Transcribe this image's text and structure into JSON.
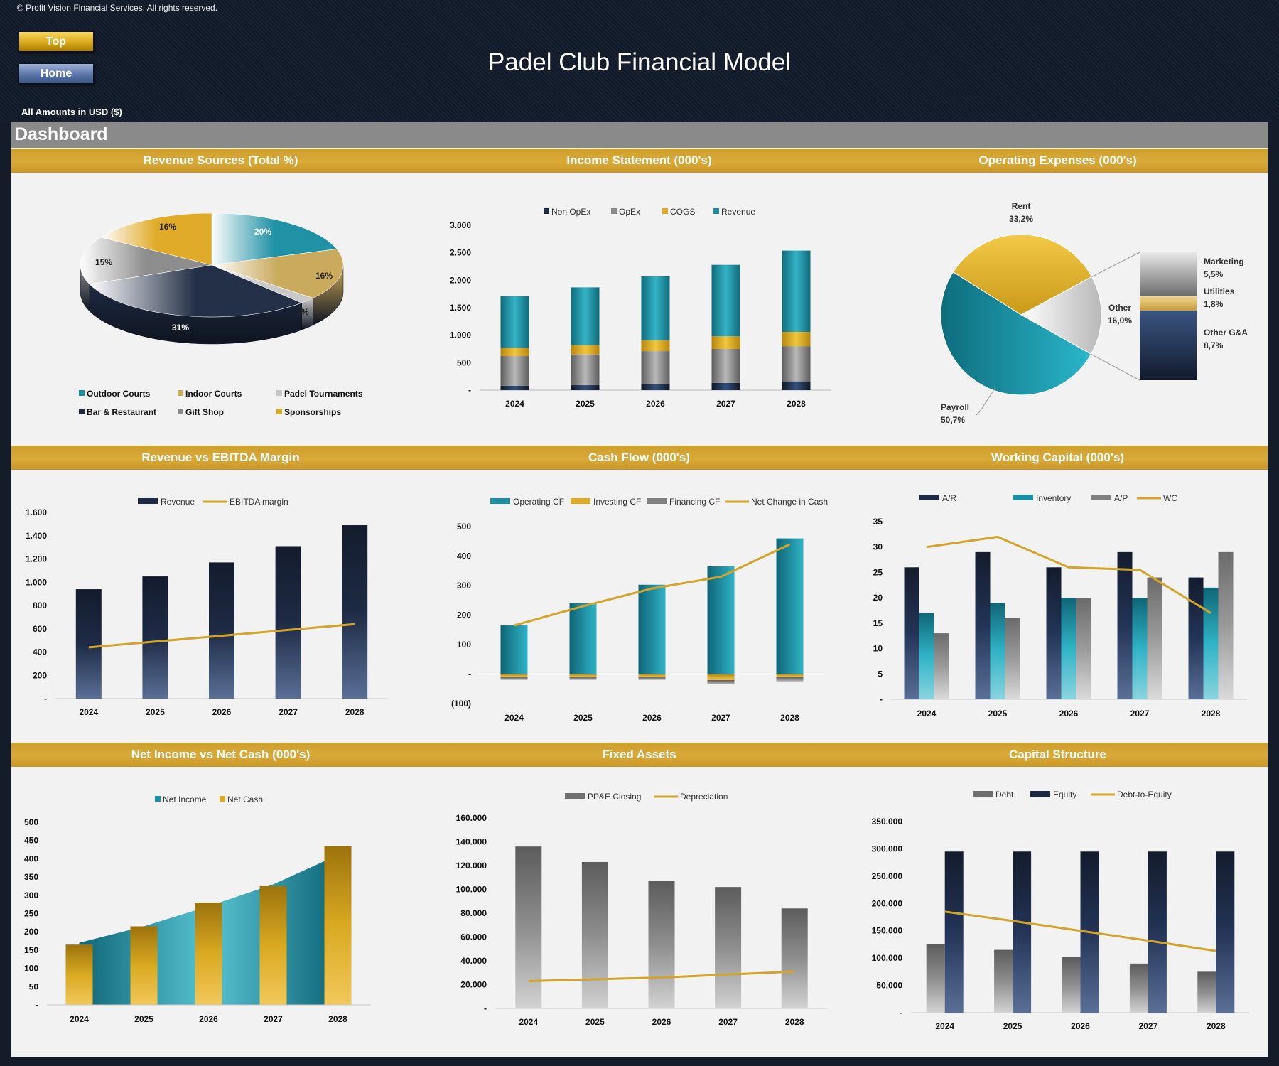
{
  "header": {
    "copyright": "© Profit Vision Financial Services. All rights reserved.",
    "top_button": "Top",
    "home_button": "Home",
    "title": "Padel Club Financial Model",
    "amounts_label": "All Amounts in  USD ($)",
    "dashboard_label": "Dashboard"
  },
  "panels": {
    "p1": "Revenue Sources (Total %)",
    "p2": "Income Statement (000's)",
    "p3": "Operating Expenses (000's)",
    "p4": "Revenue vs EBITDA Margin",
    "p5": "Cash Flow (000's)",
    "p6": "Working Capital (000's)",
    "p7": "Net Income vs Net Cash (000's)",
    "p8": "Fixed Assets",
    "p9": "Capital Structure"
  },
  "colors": {
    "teal": "#1a8fa3",
    "gold": "#d9a921",
    "navy": "#1c2a45",
    "grey": "#808080",
    "line_gold": "#d4a42a"
  },
  "chart_data": [
    {
      "id": "revenue_sources",
      "type": "pie",
      "title": "Revenue Sources (Total %)",
      "labels": [
        "20%",
        "16%",
        "2%",
        "31%",
        "15%",
        "16%"
      ],
      "slices": [
        {
          "name": "Outdoor Courts",
          "value": 20,
          "color": "#1a8fa3"
        },
        {
          "name": "Indoor Courts",
          "value": 16,
          "color": "#c9a95a"
        },
        {
          "name": "Padel Tournaments",
          "value": 2,
          "color": "#c8c8c8"
        },
        {
          "name": "Bar & Restaurant",
          "value": 31,
          "color": "#1e2a42"
        },
        {
          "name": "Gift Shop",
          "value": 15,
          "color": "#8a8a8a"
        },
        {
          "name": "Sponsorships",
          "value": 16,
          "color": "#e0a922"
        }
      ],
      "legend": [
        "Outdoor Courts",
        "Indoor Courts",
        "Padel Tournaments",
        "Bar & Restaurant",
        "Gift Shop",
        "Sponsorships"
      ]
    },
    {
      "id": "income_statement",
      "type": "bar",
      "stacked": true,
      "title": "Income Statement (000's)",
      "categories": [
        "2024",
        "2025",
        "2026",
        "2027",
        "2028"
      ],
      "series": [
        {
          "name": "Non OpEx",
          "values": [
            80,
            90,
            110,
            130,
            160
          ],
          "color": "#1c2a45"
        },
        {
          "name": "OpEx",
          "values": [
            540,
            560,
            600,
            620,
            640
          ],
          "color": "#8a8a8a"
        },
        {
          "name": "COGS",
          "values": [
            150,
            170,
            200,
            230,
            260
          ],
          "color": "#e0a922"
        },
        {
          "name": "Revenue",
          "values": [
            940,
            1050,
            1160,
            1300,
            1480
          ],
          "color": "#1a8fa3"
        }
      ],
      "ylim": [
        0,
        3000
      ],
      "yticks": [
        "-",
        "500",
        "1.000",
        "1.500",
        "2.000",
        "2.500",
        "3.000"
      ]
    },
    {
      "id": "operating_expenses",
      "type": "pie",
      "title": "Operating Expenses (000's)",
      "slices": [
        {
          "name": "Rent",
          "value": 33.2,
          "label": "33,2%"
        },
        {
          "name": "Other",
          "value": 16.0,
          "label": "16,0%"
        },
        {
          "name": "Payroll",
          "value": 50.7,
          "label": "50,7%"
        }
      ],
      "breakdown": [
        {
          "name": "Marketing",
          "value": 5.5,
          "label": "5,5%"
        },
        {
          "name": "Utilities",
          "value": 1.8,
          "label": "1,8%"
        },
        {
          "name": "Other G&A",
          "value": 8.7,
          "label": "8,7%"
        }
      ]
    },
    {
      "id": "revenue_vs_ebitda",
      "type": "bar",
      "title": "Revenue vs EBITDA Margin",
      "categories": [
        "2024",
        "2025",
        "2026",
        "2027",
        "2028"
      ],
      "series": [
        {
          "name": "Revenue",
          "type": "bar",
          "values": [
            940,
            1050,
            1170,
            1310,
            1490
          ]
        },
        {
          "name": "EBITDA margin",
          "type": "line",
          "values": [
            440,
            490,
            540,
            590,
            640
          ]
        }
      ],
      "ylim": [
        0,
        1600
      ],
      "yticks": [
        "-",
        "200",
        "400",
        "600",
        "800",
        "1.000",
        "1.200",
        "1.400",
        "1.600"
      ]
    },
    {
      "id": "cash_flow",
      "type": "bar",
      "title": "Cash Flow (000's)",
      "categories": [
        "2024",
        "2025",
        "2026",
        "2027",
        "2028"
      ],
      "series": [
        {
          "name": "Operating CF",
          "type": "bar",
          "values": [
            165,
            240,
            303,
            365,
            460
          ]
        },
        {
          "name": "Investing CF",
          "type": "bar",
          "values": [
            -10,
            -10,
            -10,
            -20,
            -10
          ]
        },
        {
          "name": "Financing CF",
          "type": "bar",
          "values": [
            -10,
            -10,
            -10,
            -15,
            -15
          ]
        },
        {
          "name": "Net Change in Cash",
          "type": "line",
          "values": [
            165,
            230,
            290,
            330,
            440
          ]
        }
      ],
      "ylim": [
        -100,
        500
      ],
      "yticks": [
        "(100)",
        "-",
        "100",
        "200",
        "300",
        "400",
        "500"
      ]
    },
    {
      "id": "working_capital",
      "type": "bar",
      "title": "Working Capital (000's)",
      "categories": [
        "2024",
        "2025",
        "2026",
        "2027",
        "2028"
      ],
      "series": [
        {
          "name": "A/R",
          "type": "bar",
          "values": [
            26,
            29,
            26,
            29,
            24
          ]
        },
        {
          "name": "Inventory",
          "type": "bar",
          "values": [
            17,
            19,
            20,
            20,
            22
          ]
        },
        {
          "name": "A/P",
          "type": "bar",
          "values": [
            13,
            16,
            20,
            24,
            29
          ]
        },
        {
          "name": "WC",
          "type": "line",
          "values": [
            30,
            32,
            26,
            25.5,
            17
          ]
        }
      ],
      "ylim": [
        0,
        35
      ],
      "yticks": [
        "-",
        "5",
        "10",
        "15",
        "20",
        "25",
        "30",
        "35"
      ]
    },
    {
      "id": "net_income_vs_net_cash",
      "type": "area",
      "title": "Net Income vs Net Cash (000's)",
      "categories": [
        "2024",
        "2025",
        "2026",
        "2027",
        "2028"
      ],
      "series": [
        {
          "name": "Net Income",
          "type": "area",
          "values": [
            170,
            215,
            270,
            330,
            410
          ]
        },
        {
          "name": "Net Cash",
          "type": "bar",
          "values": [
            165,
            215,
            280,
            325,
            435
          ]
        }
      ],
      "ylim": [
        0,
        500
      ],
      "yticks": [
        "-",
        "50",
        "100",
        "150",
        "200",
        "250",
        "300",
        "350",
        "400",
        "450",
        "500"
      ]
    },
    {
      "id": "fixed_assets",
      "type": "bar",
      "title": "Fixed Assets",
      "categories": [
        "2024",
        "2025",
        "2026",
        "2027",
        "2028"
      ],
      "series": [
        {
          "name": "PP&E Closing",
          "type": "bar",
          "values": [
            136000,
            123000,
            107000,
            102000,
            84000
          ]
        },
        {
          "name": "Depreciation",
          "type": "line",
          "values": [
            23000,
            24500,
            26000,
            28500,
            31000
          ]
        }
      ],
      "ylim": [
        0,
        160000
      ],
      "yticks": [
        "-",
        "20.000",
        "40.000",
        "60.000",
        "80.000",
        "100.000",
        "120.000",
        "140.000",
        "160.000"
      ]
    },
    {
      "id": "capital_structure",
      "type": "bar",
      "title": "Capital Structure",
      "categories": [
        "2024",
        "2025",
        "2026",
        "2027",
        "2028"
      ],
      "series": [
        {
          "name": "Debt",
          "type": "bar",
          "values": [
            125000,
            115000,
            102000,
            90000,
            75000
          ]
        },
        {
          "name": "Equity",
          "type": "bar",
          "values": [
            295000,
            295000,
            295000,
            295000,
            295000
          ]
        },
        {
          "name": "Debt-to-Equity",
          "type": "line",
          "values": [
            185000,
            168000,
            150000,
            132000,
            113000
          ]
        }
      ],
      "ylim": [
        0,
        350000
      ],
      "yticks": [
        "-",
        "50.000",
        "100.000",
        "150.000",
        "200.000",
        "250.000",
        "300.000",
        "350.000"
      ]
    }
  ]
}
